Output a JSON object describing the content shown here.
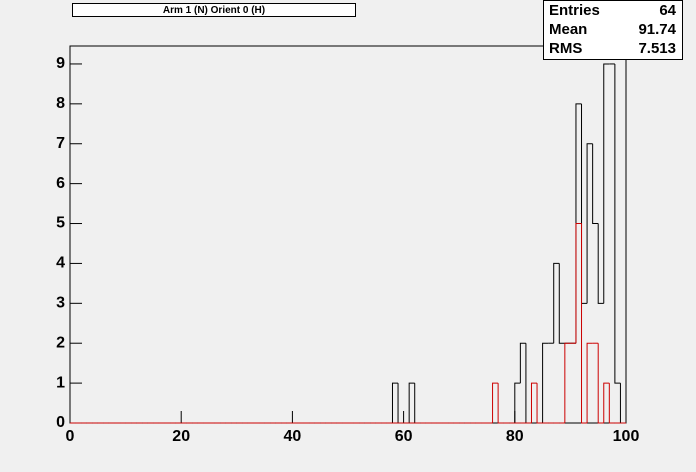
{
  "chart_data": {
    "type": "histogram",
    "title": "Arm 1 (N) Orient 0 (H)",
    "stats": [
      {
        "label": "Entries",
        "value": 64
      },
      {
        "label": "Mean",
        "value": 91.74
      },
      {
        "label": "RMS",
        "value": 7.513
      }
    ],
    "bins": [
      0,
      1,
      2,
      3,
      4,
      5,
      6,
      7,
      8,
      9,
      10,
      11,
      12,
      13,
      14,
      15,
      16,
      17,
      18,
      19,
      20,
      21,
      22,
      23,
      24,
      25,
      26,
      27,
      28,
      29,
      30,
      31,
      32,
      33,
      34,
      35,
      36,
      37,
      38,
      39,
      40,
      41,
      42,
      43,
      44,
      45,
      46,
      47,
      48,
      49,
      50,
      51,
      52,
      53,
      54,
      55,
      56,
      57,
      58,
      59,
      60,
      61,
      62,
      63,
      64,
      65,
      66,
      67,
      68,
      69,
      70,
      71,
      72,
      73,
      74,
      75,
      76,
      77,
      78,
      79,
      80,
      81,
      82,
      83,
      84,
      85,
      86,
      87,
      88,
      89,
      90,
      91,
      92,
      93,
      94,
      95,
      96,
      97,
      98,
      99,
      100
    ],
    "series": [
      {
        "color": "#000000",
        "values": [
          0,
          0,
          0,
          0,
          0,
          0,
          0,
          0,
          0,
          0,
          0,
          0,
          0,
          0,
          0,
          0,
          0,
          0,
          0,
          0,
          0,
          0,
          0,
          0,
          0,
          0,
          0,
          0,
          0,
          0,
          0,
          0,
          0,
          0,
          0,
          0,
          0,
          0,
          0,
          0,
          0,
          0,
          0,
          0,
          0,
          0,
          0,
          0,
          0,
          0,
          0,
          0,
          0,
          0,
          0,
          0,
          0,
          0,
          1,
          0,
          0,
          1,
          0,
          0,
          0,
          0,
          0,
          0,
          0,
          0,
          0,
          0,
          0,
          0,
          0,
          0,
          0,
          0,
          0,
          0,
          1,
          2,
          0,
          0,
          0,
          2,
          2,
          4,
          2,
          2,
          2,
          8,
          3,
          7,
          5,
          3,
          9,
          9,
          1,
          0
        ]
      },
      {
        "color": "#cc0000",
        "values": [
          0,
          0,
          0,
          0,
          0,
          0,
          0,
          0,
          0,
          0,
          0,
          0,
          0,
          0,
          0,
          0,
          0,
          0,
          0,
          0,
          0,
          0,
          0,
          0,
          0,
          0,
          0,
          0,
          0,
          0,
          0,
          0,
          0,
          0,
          0,
          0,
          0,
          0,
          0,
          0,
          0,
          0,
          0,
          0,
          0,
          0,
          0,
          0,
          0,
          0,
          0,
          0,
          0,
          0,
          0,
          0,
          0,
          0,
          0,
          0,
          0,
          0,
          0,
          0,
          0,
          0,
          0,
          0,
          0,
          0,
          0,
          0,
          0,
          0,
          0,
          0,
          1,
          0,
          0,
          0,
          0,
          0,
          0,
          1,
          0,
          0,
          0,
          0,
          0,
          2,
          2,
          5,
          0,
          2,
          2,
          0,
          1,
          0,
          0,
          0
        ]
      }
    ],
    "xlim": [
      0,
      100
    ],
    "xticks": [
      0,
      20,
      40,
      60,
      80,
      100
    ],
    "ylim": [
      0,
      9.45
    ],
    "yticks": [
      0,
      1,
      2,
      3,
      4,
      5,
      6,
      7,
      8,
      9
    ]
  }
}
